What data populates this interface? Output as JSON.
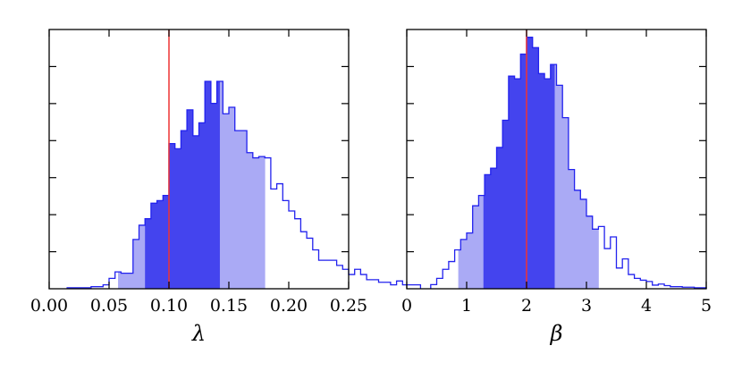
{
  "chart_data": [
    {
      "type": "histogram",
      "xlabel": "λ",
      "ylabel": "",
      "title": "",
      "xlim": [
        0.0,
        0.25
      ],
      "ylim": [
        0,
        1
      ],
      "xticks": [
        "0.00",
        "0.05",
        "0.10",
        "0.15",
        "0.20",
        "0.25"
      ],
      "bin_width": 0.005,
      "bin_start": 0.015,
      "counts": [
        0.004,
        0.004,
        0.004,
        0.004,
        0.008,
        0.008,
        0.015,
        0.04,
        0.065,
        0.06,
        0.06,
        0.19,
        0.245,
        0.27,
        0.33,
        0.34,
        0.36,
        0.56,
        0.54,
        0.61,
        0.69,
        0.59,
        0.64,
        0.8,
        0.715,
        0.8,
        0.675,
        0.7,
        0.61,
        0.61,
        0.525,
        0.505,
        0.51,
        0.505,
        0.385,
        0.405,
        0.34,
        0.3,
        0.27,
        0.22,
        0.195,
        0.15,
        0.11,
        0.11,
        0.11,
        0.09,
        0.075,
        0.055,
        0.075,
        0.055,
        0.035,
        0.035,
        0.025,
        0.025,
        0.015,
        0.03,
        0.015,
        0.015,
        0.015
      ],
      "inner_interval": [
        0.08,
        0.1425
      ],
      "outer_interval": [
        0.0575,
        0.18
      ],
      "true_value": 0.1,
      "colors": {
        "outline": "#2222ee",
        "inner_fill": "#4444ee",
        "outer_fill": "#aaaaf5",
        "true_line": "#ee3333"
      }
    },
    {
      "type": "histogram",
      "xlabel": "β",
      "ylabel": "",
      "title": "",
      "xlim": [
        0,
        5
      ],
      "ylim": [
        0,
        1
      ],
      "xticks": [
        "0",
        "1",
        "2",
        "3",
        "4",
        "5"
      ],
      "bin_width": 0.1,
      "bin_start": 0.4,
      "counts": [
        0.016,
        0.04,
        0.075,
        0.105,
        0.15,
        0.19,
        0.215,
        0.32,
        0.36,
        0.44,
        0.465,
        0.545,
        0.65,
        0.82,
        0.81,
        0.905,
        0.97,
        0.93,
        0.83,
        0.81,
        0.865,
        0.785,
        0.66,
        0.46,
        0.38,
        0.345,
        0.28,
        0.23,
        0.24,
        0.155,
        0.2,
        0.08,
        0.115,
        0.055,
        0.04,
        0.033,
        0.028,
        0.014,
        0.018,
        0.012,
        0.008,
        0.008,
        0.006,
        0.006,
        0.004,
        0.004
      ],
      "inner_interval": [
        1.28,
        2.47
      ],
      "outer_interval": [
        0.86,
        3.2
      ],
      "true_value": 2.0,
      "colors": {
        "outline": "#2222ee",
        "inner_fill": "#4444ee",
        "outer_fill": "#aaaaf5",
        "true_line": "#ee3333"
      }
    }
  ]
}
